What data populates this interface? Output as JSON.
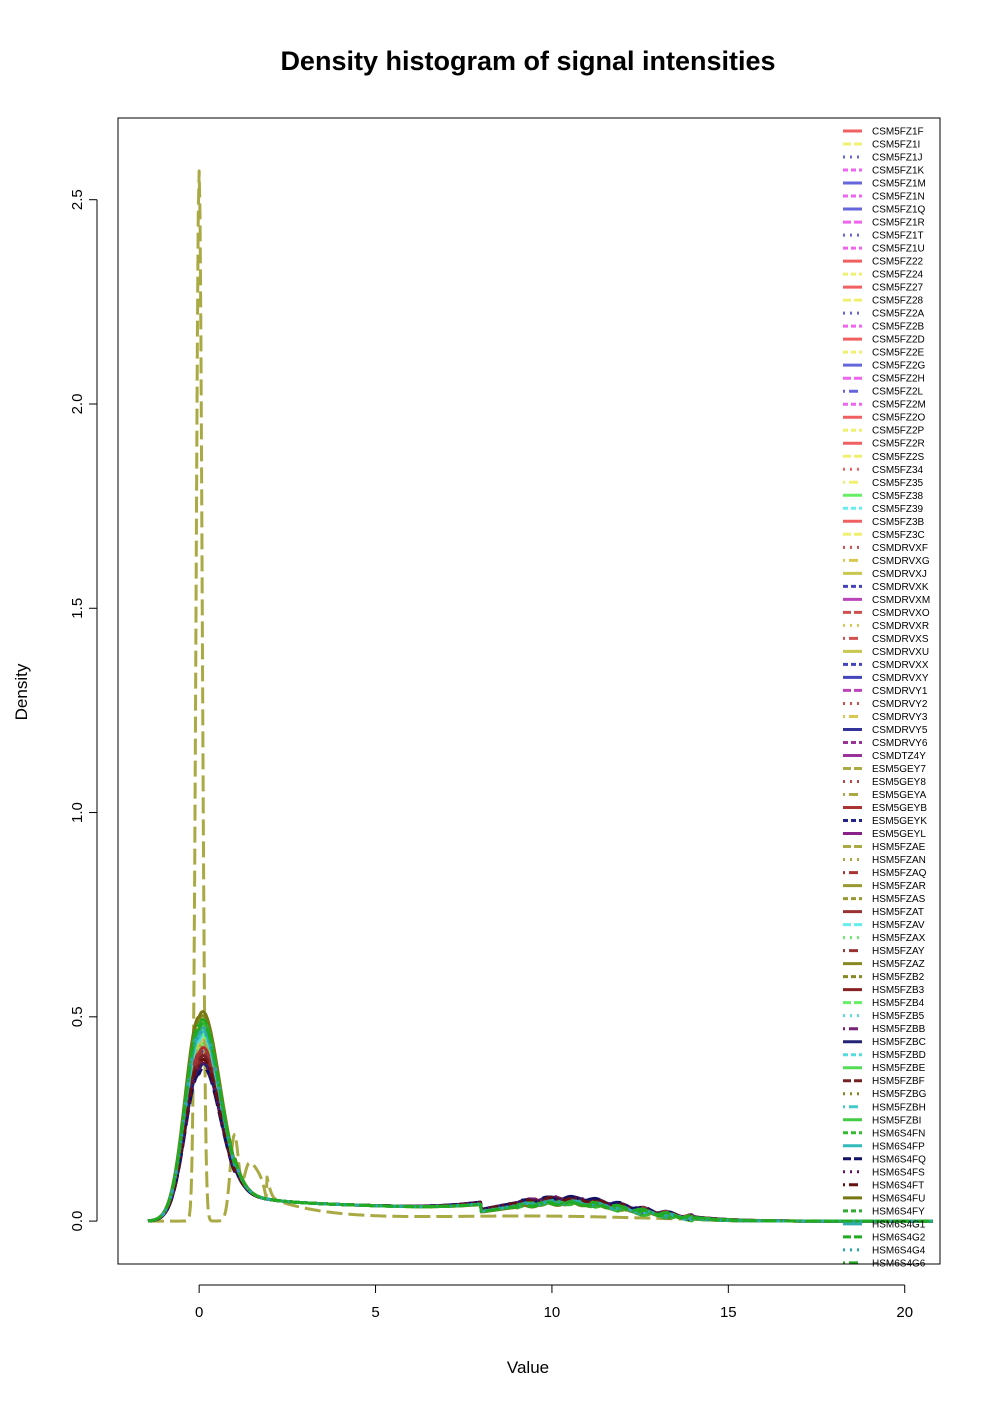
{
  "chart_data": {
    "type": "line",
    "title": "Density histogram of signal intensities",
    "xlabel": "Value",
    "ylabel": "Density",
    "xlim": [
      -2.3,
      21
    ],
    "ylim": [
      -0.105,
      2.7
    ],
    "xticks": [
      0,
      5,
      10,
      15,
      20
    ],
    "yticks": [
      0.0,
      0.5,
      1.0,
      1.5,
      2.0,
      2.5
    ],
    "xtick_labels": [
      "0",
      "5",
      "10",
      "15",
      "20"
    ],
    "ytick_labels": [
      "0.0",
      "0.5",
      "1.0",
      "1.5",
      "2.0",
      "2.5"
    ],
    "grid": false,
    "legend_position": "top-right",
    "series": [
      {
        "name": "CSM5FZ1F",
        "color": "#F06060",
        "dash": "solid",
        "peak": 0.42,
        "hump": 0.05
      },
      {
        "name": "CSM5FZ1I",
        "color": "#F0F070",
        "dash": "longdash",
        "peak": 0.45,
        "hump": 0.048
      },
      {
        "name": "CSM5FZ1J",
        "color": "#6666DD",
        "dash": "dotted",
        "peak": 0.38,
        "hump": 0.052
      },
      {
        "name": "CSM5FZ1K",
        "color": "#EE66EE",
        "dash": "dashed",
        "peak": 0.4,
        "hump": 0.05
      },
      {
        "name": "CSM5FZ1M",
        "color": "#6666DD",
        "dash": "solid",
        "peak": 0.41,
        "hump": 0.049
      },
      {
        "name": "CSM5FZ1N",
        "color": "#EE66EE",
        "dash": "dashed",
        "peak": 0.39,
        "hump": 0.051
      },
      {
        "name": "CSM5FZ1Q",
        "color": "#6666DD",
        "dash": "solid",
        "peak": 0.43,
        "hump": 0.047
      },
      {
        "name": "CSM5FZ1R",
        "color": "#EE66EE",
        "dash": "longdash",
        "peak": 0.44,
        "hump": 0.046
      },
      {
        "name": "CSM5FZ1T",
        "color": "#6666DD",
        "dash": "dotted",
        "peak": 0.37,
        "hump": 0.053
      },
      {
        "name": "CSM5FZ1U",
        "color": "#EE66EE",
        "dash": "dashed",
        "peak": 0.42,
        "hump": 0.05
      },
      {
        "name": "CSM5FZ22",
        "color": "#F06060",
        "dash": "solid",
        "peak": 0.4,
        "hump": 0.051
      },
      {
        "name": "CSM5FZ24",
        "color": "#F0F070",
        "dash": "dashed",
        "peak": 0.46,
        "hump": 0.047
      },
      {
        "name": "CSM5FZ27",
        "color": "#F06060",
        "dash": "solid",
        "peak": 0.41,
        "hump": 0.05
      },
      {
        "name": "CSM5FZ28",
        "color": "#F0F070",
        "dash": "longdash",
        "peak": 0.44,
        "hump": 0.048
      },
      {
        "name": "CSM5FZ2A",
        "color": "#6666DD",
        "dash": "dotted",
        "peak": 0.39,
        "hump": 0.052
      },
      {
        "name": "CSM5FZ2B",
        "color": "#EE66EE",
        "dash": "dashed",
        "peak": 0.4,
        "hump": 0.05
      },
      {
        "name": "CSM5FZ2D",
        "color": "#F06060",
        "dash": "solid",
        "peak": 0.42,
        "hump": 0.049
      },
      {
        "name": "CSM5FZ2E",
        "color": "#F0F070",
        "dash": "dashed",
        "peak": 0.45,
        "hump": 0.047
      },
      {
        "name": "CSM5FZ2G",
        "color": "#6666DD",
        "dash": "solid",
        "peak": 0.41,
        "hump": 0.05
      },
      {
        "name": "CSM5FZ2H",
        "color": "#EE66EE",
        "dash": "longdash",
        "peak": 0.39,
        "hump": 0.051
      },
      {
        "name": "CSM5FZ2L",
        "color": "#6666DD",
        "dash": "dotdash",
        "peak": 0.4,
        "hump": 0.052
      },
      {
        "name": "CSM5FZ2M",
        "color": "#EE66EE",
        "dash": "dashed",
        "peak": 0.42,
        "hump": 0.049
      },
      {
        "name": "CSM5FZ2O",
        "color": "#F06060",
        "dash": "solid",
        "peak": 0.43,
        "hump": 0.048
      },
      {
        "name": "CSM5FZ2P",
        "color": "#F0F070",
        "dash": "dashed",
        "peak": 0.44,
        "hump": 0.047
      },
      {
        "name": "CSM5FZ2R",
        "color": "#F06060",
        "dash": "solid",
        "peak": 0.41,
        "hump": 0.05
      },
      {
        "name": "CSM5FZ2S",
        "color": "#F0F070",
        "dash": "longdash",
        "peak": 0.45,
        "hump": 0.046
      },
      {
        "name": "CSM5FZ34",
        "color": "#F06060",
        "dash": "dotted",
        "peak": 0.4,
        "hump": 0.051
      },
      {
        "name": "CSM5FZ35",
        "color": "#F0F070",
        "dash": "dotdash",
        "peak": 0.44,
        "hump": 0.048
      },
      {
        "name": "CSM5FZ38",
        "color": "#66EE66",
        "dash": "solid",
        "peak": 0.42,
        "hump": 0.049
      },
      {
        "name": "CSM5FZ39",
        "color": "#66EEEE",
        "dash": "dashed",
        "peak": 0.43,
        "hump": 0.048
      },
      {
        "name": "CSM5FZ3B",
        "color": "#F06060",
        "dash": "solid",
        "peak": 0.41,
        "hump": 0.05
      },
      {
        "name": "CSM5FZ3C",
        "color": "#F0F070",
        "dash": "longdash",
        "peak": 0.44,
        "hump": 0.047
      },
      {
        "name": "CSMDRVXF",
        "color": "#D05050",
        "dash": "dotted",
        "peak": 0.38,
        "hump": 0.053
      },
      {
        "name": "CSMDRVXG",
        "color": "#D8C850",
        "dash": "dotdash",
        "peak": 0.4,
        "hump": 0.051
      },
      {
        "name": "CSMDRVXJ",
        "color": "#C8C850",
        "dash": "solid",
        "peak": 0.43,
        "hump": 0.048
      },
      {
        "name": "CSMDRVXK",
        "color": "#4444BB",
        "dash": "dashed",
        "peak": 0.39,
        "hump": 0.052
      },
      {
        "name": "CSMDRVXM",
        "color": "#BB44BB",
        "dash": "solid",
        "peak": 0.4,
        "hump": 0.051
      },
      {
        "name": "CSMDRVXO",
        "color": "#D05050",
        "dash": "longdash",
        "peak": 0.41,
        "hump": 0.05
      },
      {
        "name": "CSMDRVXR",
        "color": "#D8C850",
        "dash": "dotted",
        "peak": 0.42,
        "hump": 0.049
      },
      {
        "name": "CSMDRVXS",
        "color": "#D05050",
        "dash": "dotdash",
        "peak": 0.39,
        "hump": 0.052
      },
      {
        "name": "CSMDRVXU",
        "color": "#C8C850",
        "dash": "solid",
        "peak": 0.44,
        "hump": 0.047
      },
      {
        "name": "CSMDRVXX",
        "color": "#4444BB",
        "dash": "dashed",
        "peak": 0.38,
        "hump": 0.053
      },
      {
        "name": "CSMDRVXY",
        "color": "#4444BB",
        "dash": "solid",
        "peak": 0.4,
        "hump": 0.051
      },
      {
        "name": "CSMDRVY1",
        "color": "#BB44BB",
        "dash": "longdash",
        "peak": 0.39,
        "hump": 0.052
      },
      {
        "name": "CSMDRVY2",
        "color": "#D05050",
        "dash": "dotted",
        "peak": 0.41,
        "hump": 0.05
      },
      {
        "name": "CSMDRVY3",
        "color": "#D8C850",
        "dash": "dotdash",
        "peak": 0.43,
        "hump": 0.048
      },
      {
        "name": "CSMDRVY5",
        "color": "#333399",
        "dash": "solid",
        "peak": 0.37,
        "hump": 0.054
      },
      {
        "name": "CSMDRVY6",
        "color": "#993399",
        "dash": "dashed",
        "peak": 0.38,
        "hump": 0.053
      },
      {
        "name": "CSMDTZ4Y",
        "color": "#993399",
        "dash": "solid",
        "peak": 0.39,
        "hump": 0.052
      },
      {
        "name": "ESM5GEY7",
        "color": "#AAAA44",
        "dash": "longdash",
        "peak": 2.57,
        "hump": 0.0,
        "spiky": true
      },
      {
        "name": "ESM5GEY8",
        "color": "#BB4444",
        "dash": "dotted",
        "peak": 0.4,
        "hump": 0.051
      },
      {
        "name": "ESM5GEYA",
        "color": "#AAAA44",
        "dash": "dotdash",
        "peak": 0.42,
        "hump": 0.049
      },
      {
        "name": "ESM5GEYB",
        "color": "#AA3333",
        "dash": "solid",
        "peak": 0.41,
        "hump": 0.05
      },
      {
        "name": "ESM5GEYK",
        "color": "#222288",
        "dash": "dashed",
        "peak": 0.37,
        "hump": 0.054
      },
      {
        "name": "ESM5GEYL",
        "color": "#882288",
        "dash": "solid",
        "peak": 0.38,
        "hump": 0.053
      },
      {
        "name": "HSM5FZAE",
        "color": "#AAAA44",
        "dash": "longdash",
        "peak": 0.46,
        "hump": 0.046
      },
      {
        "name": "HSM5FZAN",
        "color": "#AAAA44",
        "dash": "dotted",
        "peak": 0.45,
        "hump": 0.047
      },
      {
        "name": "HSM5FZAQ",
        "color": "#AA3333",
        "dash": "dotdash",
        "peak": 0.4,
        "hump": 0.051
      },
      {
        "name": "HSM5FZAR",
        "color": "#999933",
        "dash": "solid",
        "peak": 0.47,
        "hump": 0.045
      },
      {
        "name": "HSM5FZAS",
        "color": "#999933",
        "dash": "dashed",
        "peak": 0.48,
        "hump": 0.044
      },
      {
        "name": "HSM5FZAT",
        "color": "#993333",
        "dash": "solid",
        "peak": 0.39,
        "hump": 0.052
      },
      {
        "name": "HSM5FZAV",
        "color": "#66EEEE",
        "dash": "longdash",
        "peak": 0.45,
        "hump": 0.047
      },
      {
        "name": "HSM5FZAX",
        "color": "#66EE66",
        "dash": "dotted",
        "peak": 0.46,
        "hump": 0.046
      },
      {
        "name": "HSM5FZAY",
        "color": "#993333",
        "dash": "dotdash",
        "peak": 0.4,
        "hump": 0.051
      },
      {
        "name": "HSM5FZAZ",
        "color": "#888822",
        "dash": "solid",
        "peak": 0.49,
        "hump": 0.043
      },
      {
        "name": "HSM5FZB2",
        "color": "#888822",
        "dash": "dashed",
        "peak": 0.48,
        "hump": 0.044
      },
      {
        "name": "HSM5FZB3",
        "color": "#882222",
        "dash": "solid",
        "peak": 0.38,
        "hump": 0.053
      },
      {
        "name": "HSM5FZB4",
        "color": "#66EE66",
        "dash": "longdash",
        "peak": 0.44,
        "hump": 0.047
      },
      {
        "name": "HSM5FZB5",
        "color": "#55DDDD",
        "dash": "dotted",
        "peak": 0.45,
        "hump": 0.046
      },
      {
        "name": "HSM5FZBB",
        "color": "#772277",
        "dash": "dotdash",
        "peak": 0.38,
        "hump": 0.054
      },
      {
        "name": "HSM5FZBC",
        "color": "#222277",
        "dash": "solid",
        "peak": 0.37,
        "hump": 0.055
      },
      {
        "name": "HSM5FZBD",
        "color": "#55DDDD",
        "dash": "dashed",
        "peak": 0.44,
        "hump": 0.047
      },
      {
        "name": "HSM5FZBE",
        "color": "#55DD55",
        "dash": "solid",
        "peak": 0.46,
        "hump": 0.046
      },
      {
        "name": "HSM5FZBF",
        "color": "#772222",
        "dash": "longdash",
        "peak": 0.39,
        "hump": 0.052
      },
      {
        "name": "HSM5FZBG",
        "color": "#888822",
        "dash": "dotted",
        "peak": 0.47,
        "hump": 0.045
      },
      {
        "name": "HSM5FZBH",
        "color": "#44CCCC",
        "dash": "dotdash",
        "peak": 0.45,
        "hump": 0.046
      },
      {
        "name": "HSM5FZBI",
        "color": "#44CC44",
        "dash": "solid",
        "peak": 0.46,
        "hump": 0.045
      },
      {
        "name": "HSM6S4FN",
        "color": "#33BB33",
        "dash": "dashed",
        "peak": 0.47,
        "hump": 0.044
      },
      {
        "name": "HSM6S4FP",
        "color": "#33BBBB",
        "dash": "solid",
        "peak": 0.45,
        "hump": 0.046
      },
      {
        "name": "HSM6S4FQ",
        "color": "#111166",
        "dash": "longdash",
        "peak": 0.36,
        "hump": 0.056
      },
      {
        "name": "HSM6S4FS",
        "color": "#661166",
        "dash": "dotted",
        "peak": 0.37,
        "hump": 0.055
      },
      {
        "name": "HSM6S4FT",
        "color": "#661111",
        "dash": "dotdash",
        "peak": 0.38,
        "hump": 0.054
      },
      {
        "name": "HSM6S4FU",
        "color": "#777711",
        "dash": "solid",
        "peak": 0.5,
        "hump": 0.042
      },
      {
        "name": "HSM6S4FY",
        "color": "#33AA33",
        "dash": "dashed",
        "peak": 0.48,
        "hump": 0.044
      },
      {
        "name": "HSM6S4G1",
        "color": "#33AAAA",
        "dash": "solid",
        "peak": 0.46,
        "hump": 0.045
      },
      {
        "name": "HSM6S4G2",
        "color": "#22AA22",
        "dash": "longdash",
        "peak": 0.47,
        "hump": 0.044
      },
      {
        "name": "HSM6S4G4",
        "color": "#22AAAA",
        "dash": "dotted",
        "peak": 0.45,
        "hump": 0.046
      },
      {
        "name": "HSM6S4G6",
        "color": "#22AA22",
        "dash": "dotdash",
        "peak": 0.48,
        "hump": 0.043
      }
    ]
  }
}
